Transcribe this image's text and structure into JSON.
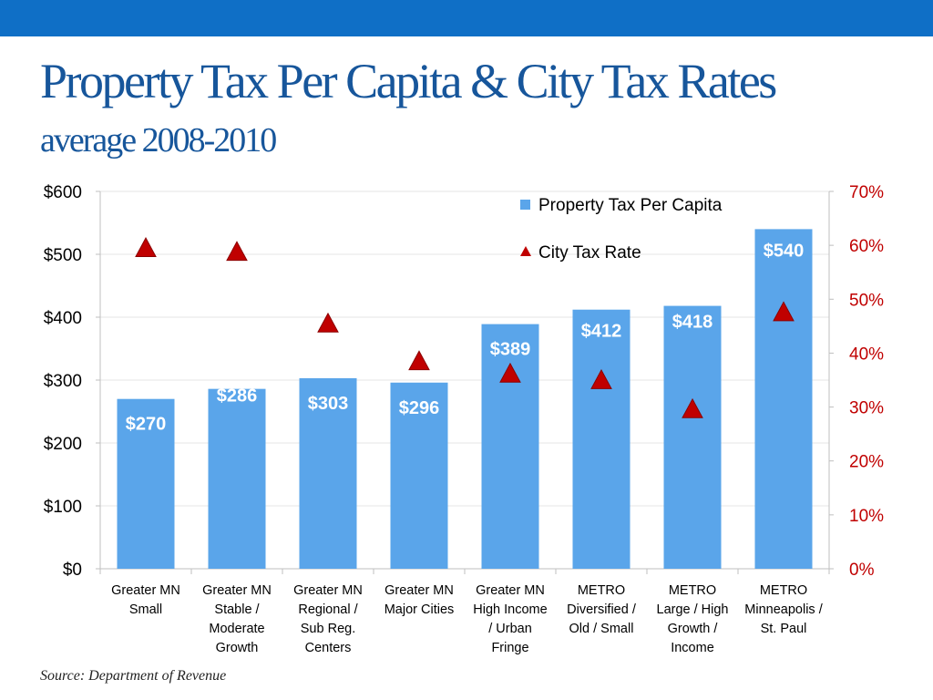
{
  "slide": {
    "title": "Property Tax Per Capita  & City Tax Rates",
    "subtitle": "average 2008-2010",
    "source": "Source: Department of Revenue"
  },
  "colors": {
    "bar": "#5aa5ea",
    "marker": "#c00000",
    "right_axis": "#c00000",
    "title": "#17569b",
    "top_bar": "#0f6fc6"
  },
  "chart_data": {
    "type": "bar",
    "categories": [
      [
        "Greater MN",
        "Small"
      ],
      [
        "Greater MN",
        "Stable /",
        "Moderate",
        "Growth"
      ],
      [
        "Greater MN",
        "Regional /",
        "Sub Reg.",
        "Centers"
      ],
      [
        "Greater MN",
        "Major Cities"
      ],
      [
        "Greater MN",
        "High Income",
        "/ Urban",
        "Fringe"
      ],
      [
        "METRO",
        "Diversified /",
        "Old / Small"
      ],
      [
        "METRO",
        "Large / High",
        "Growth /",
        "Income"
      ],
      [
        "METRO",
        "Minneapolis /",
        "St. Paul"
      ]
    ],
    "series": [
      {
        "name": "Property Tax Per Capita",
        "type": "bar",
        "axis": "left",
        "values": [
          270,
          286,
          303,
          296,
          389,
          412,
          418,
          540
        ],
        "labels": [
          "$270",
          "$286",
          "$303",
          "$296",
          "$389",
          "$412",
          "$418",
          "$540"
        ]
      },
      {
        "name": "City Tax Rate",
        "type": "scatter",
        "marker": "triangle",
        "axis": "right",
        "values": [
          59.5,
          58.8,
          45.5,
          38.5,
          36.2,
          35.0,
          29.6,
          47.6
        ]
      }
    ],
    "y_left": {
      "ylim": [
        0,
        600
      ],
      "ticks": [
        0,
        100,
        200,
        300,
        400,
        500,
        600
      ],
      "tick_labels": [
        "$0",
        "$100",
        "$200",
        "$300",
        "$400",
        "$500",
        "$600"
      ]
    },
    "y_right": {
      "ylim": [
        0,
        70
      ],
      "ticks": [
        0,
        10,
        20,
        30,
        40,
        50,
        60,
        70
      ],
      "tick_labels": [
        "0%",
        "10%",
        "20%",
        "30%",
        "40%",
        "50%",
        "60%",
        "70%"
      ]
    },
    "grid": true,
    "legend_position": "top-right"
  }
}
